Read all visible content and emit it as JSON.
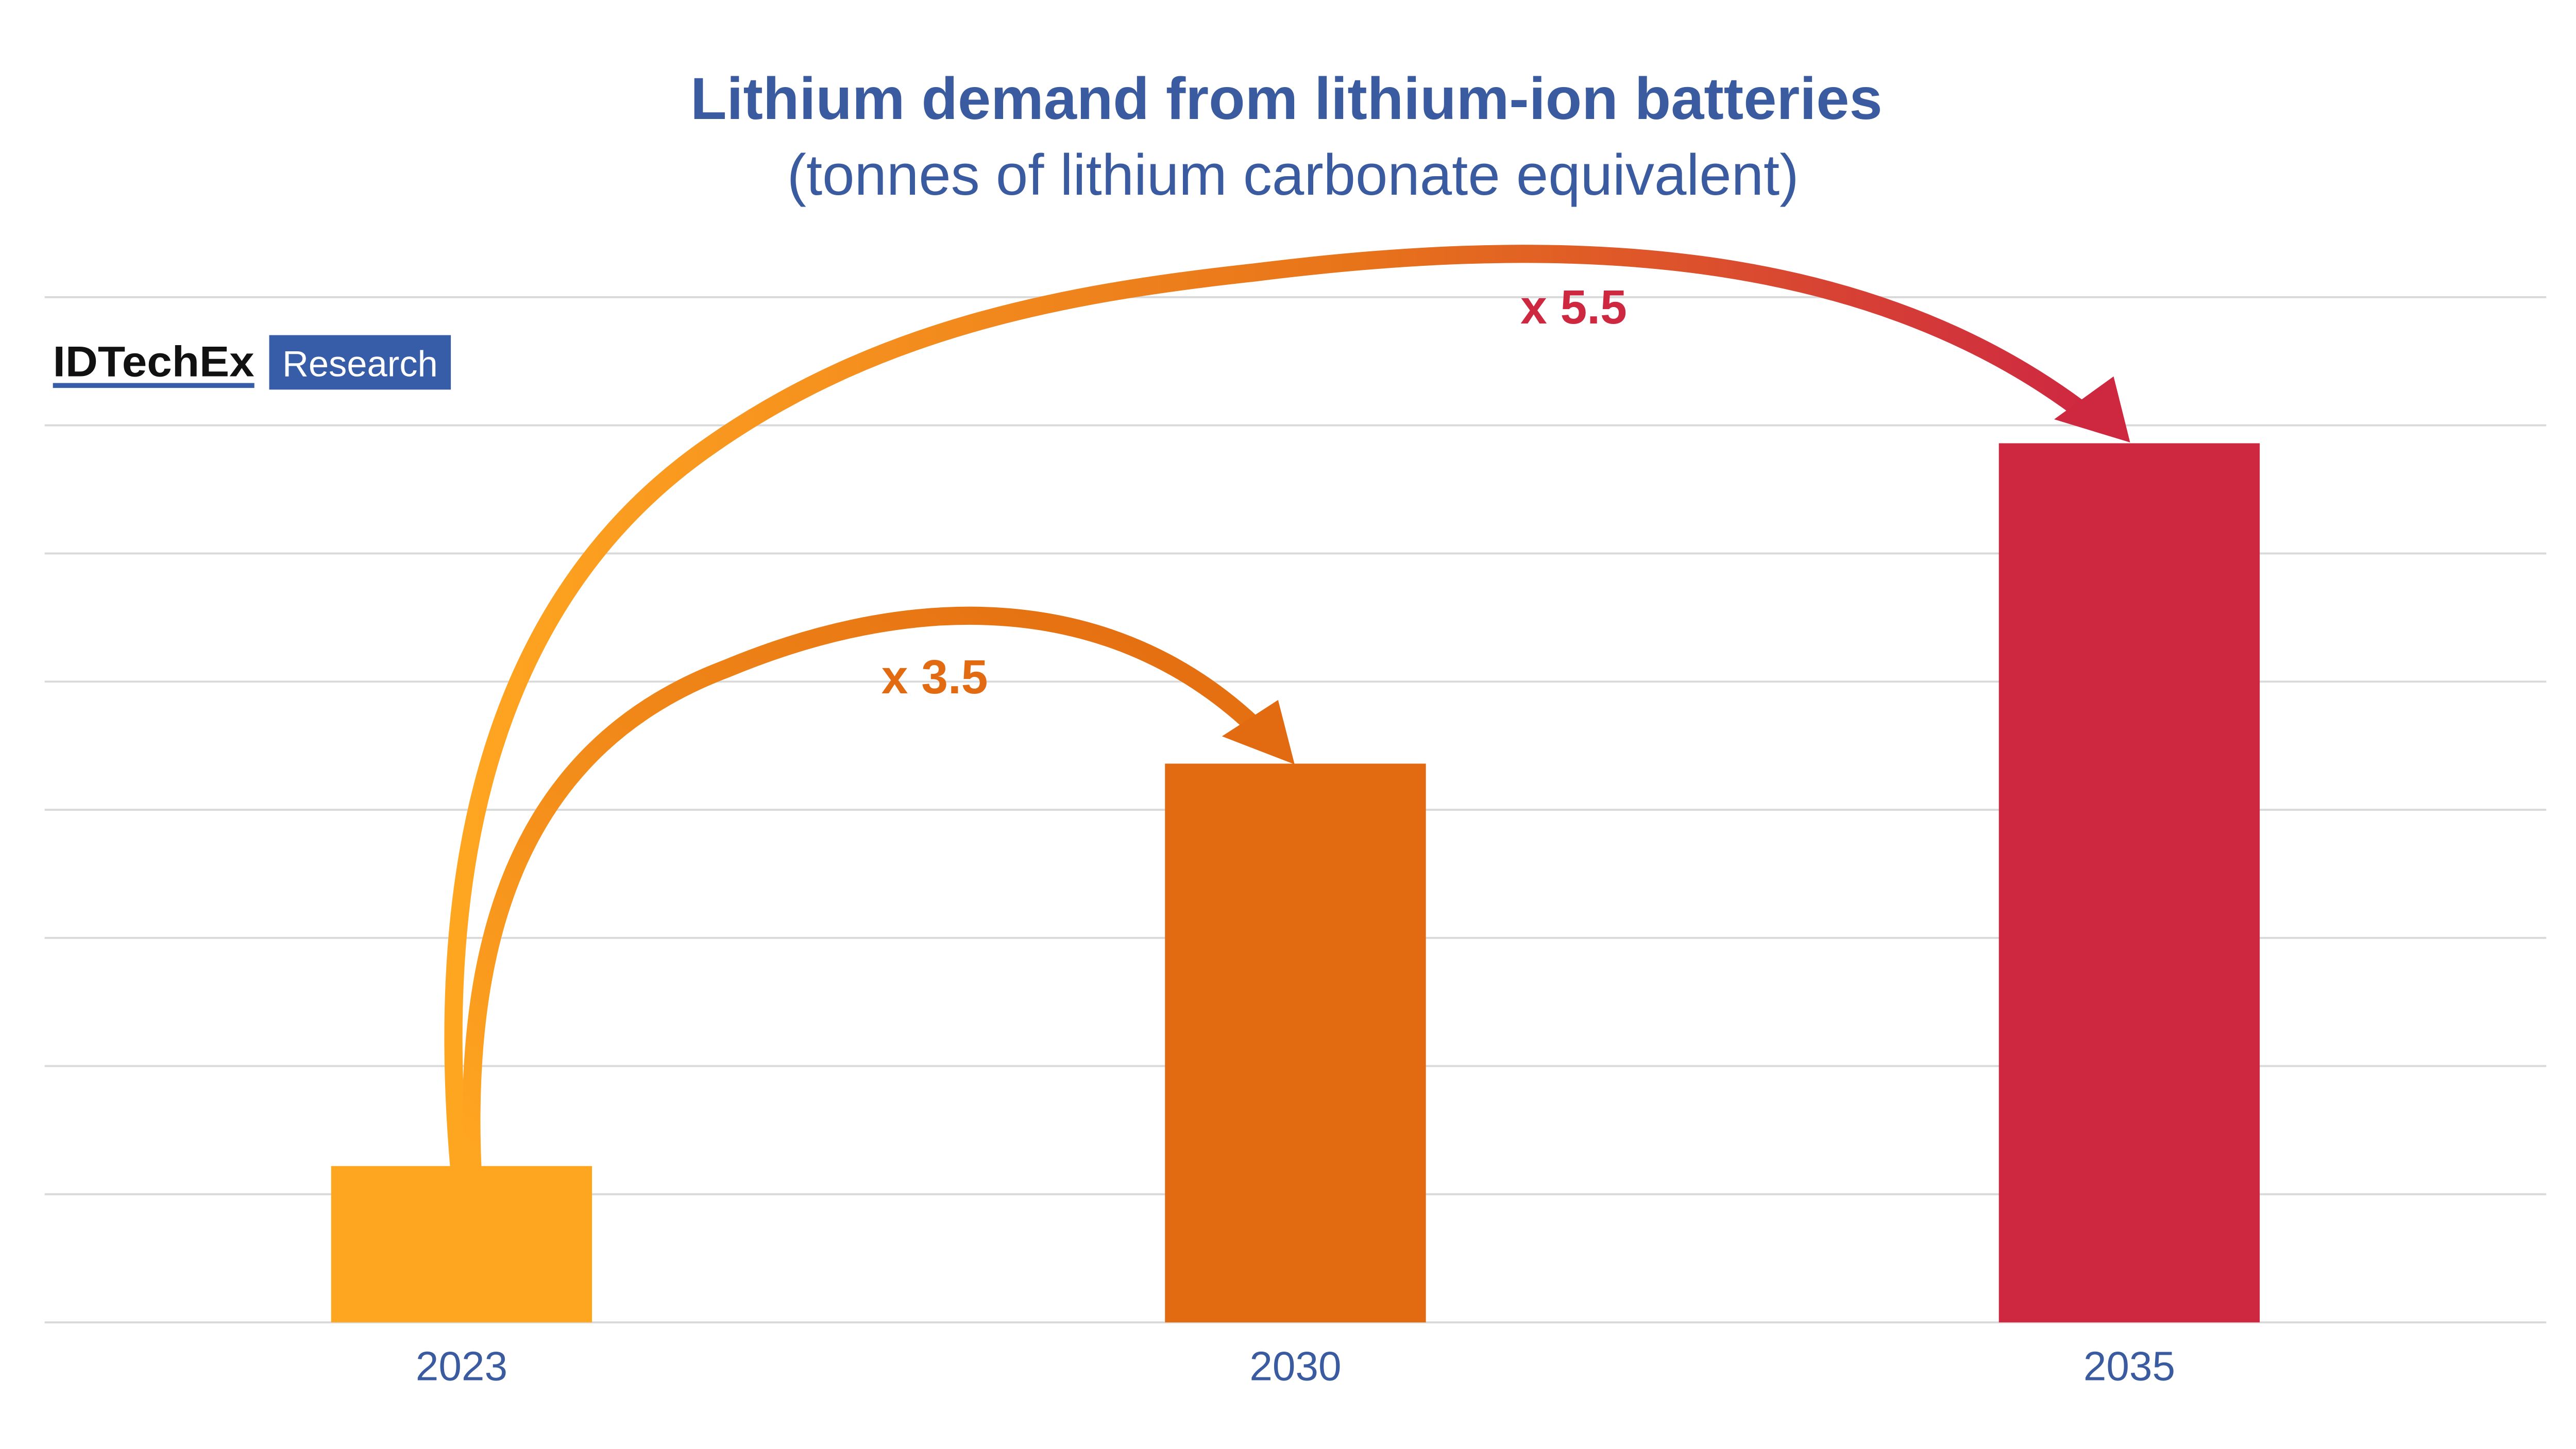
{
  "chart_data": {
    "type": "bar",
    "title": "Lithium demand from lithium-ion batteries",
    "subtitle": "(tonnes of lithium carbonate equivalent)",
    "categories": [
      "2023",
      "2030",
      "2035"
    ],
    "values": [
      1.22,
      4.36,
      6.86
    ],
    "value_units": "relative (gridline intervals; no y-axis values printed)",
    "ylim": [
      0,
      8
    ],
    "grid": true,
    "bar_colors": [
      "#FFA621",
      "#E26A10",
      "#CE2841"
    ],
    "annotations": [
      {
        "label": "x 3.5",
        "from": "2023",
        "to": "2030",
        "color": "#E26A10"
      },
      {
        "label": "x 5.5",
        "from": "2023",
        "to": "2035",
        "color": "#CE2841"
      }
    ],
    "text_color": "#3A5BA0"
  },
  "logo": {
    "name": "IDTechEx",
    "tag": "Research",
    "color": "#375CA8"
  }
}
